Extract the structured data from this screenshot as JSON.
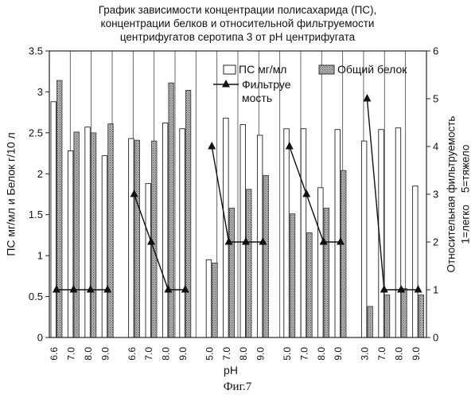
{
  "figure_caption": "Фиг.7",
  "chart_data": {
    "type": "bar",
    "title_lines": [
      "График зависимости концентрации полисахарида (ПС),",
      "концентрации белков и относительной фильтруемости",
      "центрифугатов серотипа 3 от pH центрифугата"
    ],
    "xlabel": "pH",
    "ylabel": "ПС мг/мл и Белок г/10 л",
    "ylabel_right_lines": [
      "Относительная фильтруемость",
      "1=легко    5=тяжело"
    ],
    "ylim": [
      0,
      3.5
    ],
    "ylim_right": [
      0,
      6
    ],
    "yticks": [
      "0",
      "0.5",
      "1",
      "1.5",
      "2",
      "2.5",
      "3",
      "3.5"
    ],
    "yticks_right": [
      "0",
      "1",
      "2",
      "3",
      "4",
      "5",
      "6"
    ],
    "legend": {
      "placement": "top-right",
      "ps_label": "ПС мг/мл",
      "protein_label": "Общий белок",
      "filter_label_line1": "Фильтруе",
      "filter_label_line2": "мость"
    },
    "colors": {
      "ps": "#ffffff",
      "protein": "#9a9a9a",
      "line": "#111111"
    },
    "groups": [
      {
        "categories": [
          "6.6",
          "7.0",
          "8.0",
          "9.0"
        ],
        "ps": [
          2.88,
          2.28,
          2.57,
          2.22
        ],
        "protein": [
          3.14,
          2.51,
          2.5,
          2.61
        ],
        "filterability": [
          1,
          1,
          1,
          1
        ]
      },
      {
        "categories": [
          "6.6",
          "7.0",
          "8.0",
          "9.0"
        ],
        "ps": [
          2.43,
          1.88,
          2.62,
          2.55
        ],
        "protein": [
          2.41,
          2.4,
          3.11,
          3.02
        ],
        "filterability": [
          3,
          2,
          1,
          1
        ]
      },
      {
        "categories": [
          "5.0",
          "7.0",
          "8.0",
          "9.0"
        ],
        "ps": [
          0.95,
          2.68,
          2.6,
          2.47
        ],
        "protein": [
          0.91,
          1.58,
          1.81,
          1.98
        ],
        "filterability": [
          4,
          2,
          2,
          2
        ]
      },
      {
        "categories": [
          "5.0",
          "7.0",
          "8.0",
          "9.0"
        ],
        "ps": [
          2.55,
          2.55,
          1.83,
          2.54
        ],
        "protein": [
          1.51,
          1.28,
          1.58,
          2.04
        ],
        "filterability": [
          4,
          3,
          2,
          2
        ]
      },
      {
        "categories": [
          "3.0",
          "7.0",
          "8.0",
          "9.0"
        ],
        "ps": [
          2.4,
          2.54,
          2.56,
          1.85
        ],
        "protein": [
          0.38,
          0.52,
          0.6,
          0.52
        ],
        "filterability": [
          5,
          1,
          1,
          1
        ]
      }
    ]
  }
}
